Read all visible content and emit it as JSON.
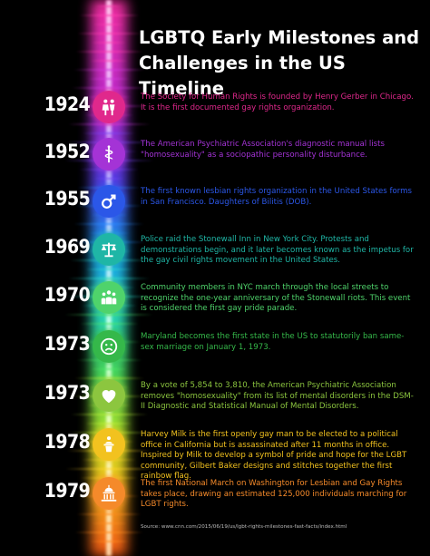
{
  "title": "LGBTQ Early Milestones and Challenges in the US Timeline",
  "milestones": [
    {
      "year": "1924",
      "icon": "couple-icon",
      "color": "#e0288c",
      "text": "The Society for Human Rights is founded by Henry Gerber in Chicago. It is the first documented gay rights organization."
    },
    {
      "year": "1952",
      "icon": "caduceus-icon",
      "color": "#a433d6",
      "text": "The American Psychiatric Association's diagnostic manual lists \"homosexuality\" as a sociopathic personality disturbance."
    },
    {
      "year": "1955",
      "icon": "gender-symbol-icon",
      "color": "#2b57e8",
      "text": "The first known lesbian rights organization in the United States forms in San Francisco. Daughters of Bilitis (DOB)."
    },
    {
      "year": "1969",
      "icon": "balance-scale-icon",
      "color": "#1fb6a6",
      "text": "Police raid the Stonewall Inn in New York City. Protests and demonstrations begin, and it later becomes known as the impetus for the gay civil rights movement in the United States."
    },
    {
      "year": "1970",
      "icon": "crowd-icon",
      "color": "#4fd36b",
      "text": "Community members in NYC march through the local streets to recognize the one-year anniversary of the Stonewall riots. This event is considered the first gay pride parade."
    },
    {
      "year": "1973",
      "icon": "sad-face-icon",
      "color": "#35b84a",
      "text": "Maryland becomes the first state in the US to statutorily ban same-sex marriage on January 1, 1973."
    },
    {
      "year": "1973",
      "icon": "heart-icon",
      "color": "#8cc63f",
      "text": "By a vote of 5,854 to 3,810, the American Psychiatric Association removes \"homosexuality\" from its list of mental disorders in the DSM-II Diagnostic and Statistical Manual of Mental Disorders."
    },
    {
      "year": "1978",
      "icon": "speaker-podium-icon",
      "color": "#f2c21f",
      "text": "Harvey Milk is the first openly gay man to be elected to a political office in California but is assassinated after 11 months in office. Inspired by Milk to develop a symbol of pride and hope for the LGBT community, Gilbert Baker designs and stitches together the first rainbow flag."
    },
    {
      "year": "1979",
      "icon": "capitol-building-icon",
      "color": "#f58a2a",
      "text": "The first National March on Washington for Lesbian and Gay Rights takes place, drawing an estimated 125,000 individuals marching for LGBT rights."
    }
  ],
  "source": "Source: www.cnn.com/2015/06/19/us/lgbt-rights-milestones-fast-facts/index.html"
}
